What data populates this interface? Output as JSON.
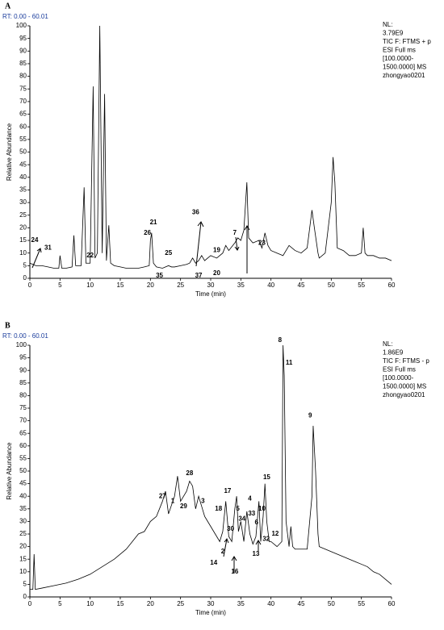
{
  "chart_data": [
    {
      "type": "line",
      "panel": "A",
      "range_label": "RT: 0.00 - 60.01",
      "xlabel": "Time (min)",
      "ylabel": "Relative Abundance",
      "xlim": [
        0,
        60
      ],
      "ylim": [
        0,
        100
      ],
      "xticks": [
        0,
        5,
        10,
        15,
        20,
        25,
        30,
        35,
        40,
        45,
        50,
        55,
        60
      ],
      "yticks": [
        0,
        5,
        10,
        15,
        20,
        25,
        30,
        35,
        40,
        45,
        50,
        55,
        60,
        65,
        70,
        75,
        80,
        85,
        90,
        95,
        100
      ],
      "color": "#000000",
      "info": [
        "NL:",
        "3.79E9",
        "TIC F: FTMS + p",
        "ESI Full ms",
        "[100.0000-",
        "1500.0000]  MS",
        "zhongyao0201"
      ],
      "x": [
        0,
        0.5,
        1,
        2,
        3,
        4,
        4.8,
        5,
        5.3,
        6,
        7,
        7.3,
        7.6,
        8.5,
        9,
        9.3,
        10,
        10.5,
        10.8,
        11.2,
        11.6,
        12,
        12.4,
        12.7,
        13.1,
        13.4,
        14,
        15,
        16,
        17,
        18,
        19,
        19.8,
        20,
        20.2,
        20.5,
        21,
        22,
        23,
        23.5,
        24,
        25,
        26,
        26.5,
        27,
        27.5,
        28,
        28.5,
        29,
        30,
        31,
        32,
        32.5,
        33,
        34,
        34.5,
        35,
        35.5,
        36,
        36.3,
        37,
        38,
        38.5,
        39,
        39.5,
        40,
        41,
        42,
        43,
        44,
        45,
        46,
        46.8,
        47.2,
        47.8,
        48,
        49,
        50,
        50.3,
        50.6,
        51,
        52,
        53,
        54,
        55,
        55.3,
        55.6,
        56,
        57,
        58,
        59,
        60
      ],
      "values": [
        6,
        5.5,
        5,
        5,
        4.5,
        4,
        4,
        9,
        4,
        4,
        4.5,
        17,
        5,
        5,
        36,
        6,
        6,
        76,
        8,
        10,
        100,
        10,
        73,
        7,
        21,
        6,
        5,
        4.5,
        4,
        4,
        4,
        4.5,
        5,
        15,
        18,
        6,
        4.5,
        4,
        5,
        4.5,
        4.5,
        5,
        5.5,
        6,
        8,
        6,
        7,
        9,
        7,
        9,
        8,
        10,
        13,
        11,
        14,
        16,
        15,
        19,
        38,
        16,
        14,
        15,
        12,
        18,
        13,
        11,
        10,
        9,
        13,
        11,
        10,
        12,
        27,
        20,
        10,
        8,
        10,
        30,
        48,
        38,
        12,
        11,
        9,
        9,
        10,
        20,
        10,
        9,
        9,
        8,
        8,
        7
      ],
      "annotations": [
        {
          "text": "24",
          "x": 0.8,
          "y": 15
        },
        {
          "text": "31",
          "x": 3,
          "y": 12
        },
        {
          "text": "22",
          "x": 10,
          "y": 9
        },
        {
          "text": "26",
          "x": 19.5,
          "y": 18
        },
        {
          "text": "21",
          "x": 20.5,
          "y": 22
        },
        {
          "text": "25",
          "x": 23,
          "y": 10
        },
        {
          "text": "35",
          "x": 21.5,
          "y": 1
        },
        {
          "text": "36",
          "x": 27.5,
          "y": 26
        },
        {
          "text": "37",
          "x": 28,
          "y": 1
        },
        {
          "text": "19",
          "x": 31,
          "y": 11
        },
        {
          "text": "20",
          "x": 31,
          "y": 2
        },
        {
          "text": "7",
          "x": 34,
          "y": 18
        },
        {
          "text": "23",
          "x": 38.5,
          "y": 14
        }
      ]
    },
    {
      "type": "line",
      "panel": "B",
      "range_label": "RT: 0.00 - 60.01",
      "xlabel": "Time (min)",
      "ylabel": "Relative Abundance",
      "xlim": [
        0,
        60
      ],
      "ylim": [
        0,
        100
      ],
      "xticks": [
        0,
        5,
        10,
        15,
        20,
        25,
        30,
        35,
        40,
        45,
        50,
        55,
        60
      ],
      "yticks": [
        0,
        5,
        10,
        15,
        20,
        25,
        30,
        35,
        40,
        45,
        50,
        55,
        60,
        65,
        70,
        75,
        80,
        85,
        90,
        95,
        100
      ],
      "color": "#000000",
      "info": [
        "NL:",
        "1.86E9",
        "TIC F: FTMS - p",
        "ESI Full ms",
        "[100.0000-",
        "1500.0000]  MS",
        "zhongyao0201"
      ],
      "x": [
        0,
        0.5,
        0.7,
        0.9,
        2,
        4,
        6,
        8,
        10,
        12,
        14,
        16,
        17,
        18,
        19,
        20,
        21,
        22,
        22.5,
        23,
        24,
        24.5,
        25,
        26,
        26.5,
        27,
        27.5,
        28,
        28.5,
        29,
        30,
        31,
        31.5,
        32,
        32.5,
        33,
        33.5,
        34,
        34.3,
        34.6,
        35,
        35.5,
        36,
        36.5,
        37,
        37.5,
        38,
        38.3,
        38.7,
        39,
        39.3,
        39.7,
        40,
        41,
        41.8,
        42,
        42.2,
        42.5,
        43,
        43.3,
        43.6,
        44,
        45,
        46,
        46.8,
        47,
        47.4,
        47.8,
        48,
        49,
        50,
        51,
        52,
        53,
        54,
        55,
        56,
        57,
        58,
        59,
        60
      ],
      "values": [
        3,
        3,
        17,
        3,
        3.5,
        4.5,
        5.5,
        7,
        9,
        12,
        15,
        19,
        22,
        25,
        26,
        30,
        32,
        38,
        42,
        33,
        40,
        48,
        38,
        42,
        46,
        44,
        35,
        40,
        36,
        32,
        28,
        24,
        22,
        26,
        38,
        24,
        22,
        35,
        40,
        26,
        30,
        22,
        34,
        25,
        21,
        24,
        38,
        22,
        32,
        45,
        30,
        22,
        22,
        20,
        22,
        100,
        88,
        30,
        20,
        28,
        20,
        19,
        19,
        19,
        40,
        68,
        50,
        25,
        20,
        19,
        18,
        17,
        16,
        15,
        14,
        13,
        12,
        10,
        9,
        7,
        5
      ],
      "annotations": [
        {
          "text": "27",
          "x": 22,
          "y": 40
        },
        {
          "text": "1",
          "x": 23.7,
          "y": 38
        },
        {
          "text": "28",
          "x": 26.5,
          "y": 49
        },
        {
          "text": "29",
          "x": 25.5,
          "y": 36
        },
        {
          "text": "3",
          "x": 28.7,
          "y": 38
        },
        {
          "text": "17",
          "x": 32.8,
          "y": 42
        },
        {
          "text": "18",
          "x": 31.3,
          "y": 35
        },
        {
          "text": "5",
          "x": 34.5,
          "y": 35
        },
        {
          "text": "34",
          "x": 35.2,
          "y": 31
        },
        {
          "text": "30",
          "x": 33.3,
          "y": 27
        },
        {
          "text": "4",
          "x": 36.5,
          "y": 39
        },
        {
          "text": "33",
          "x": 36.8,
          "y": 33
        },
        {
          "text": "6",
          "x": 37.6,
          "y": 29.5
        },
        {
          "text": "10",
          "x": 38.5,
          "y": 35
        },
        {
          "text": "15",
          "x": 39.3,
          "y": 47.5
        },
        {
          "text": "12",
          "x": 40.7,
          "y": 25
        },
        {
          "text": "32",
          "x": 39.2,
          "y": 23
        },
        {
          "text": "13",
          "x": 37.5,
          "y": 17
        },
        {
          "text": "2",
          "x": 32,
          "y": 18
        },
        {
          "text": "14",
          "x": 30.5,
          "y": 13.5
        },
        {
          "text": "16",
          "x": 34,
          "y": 10
        },
        {
          "text": "8",
          "x": 41.5,
          "y": 102
        },
        {
          "text": "11",
          "x": 43,
          "y": 93
        },
        {
          "text": "9",
          "x": 46.5,
          "y": 72
        }
      ]
    }
  ]
}
